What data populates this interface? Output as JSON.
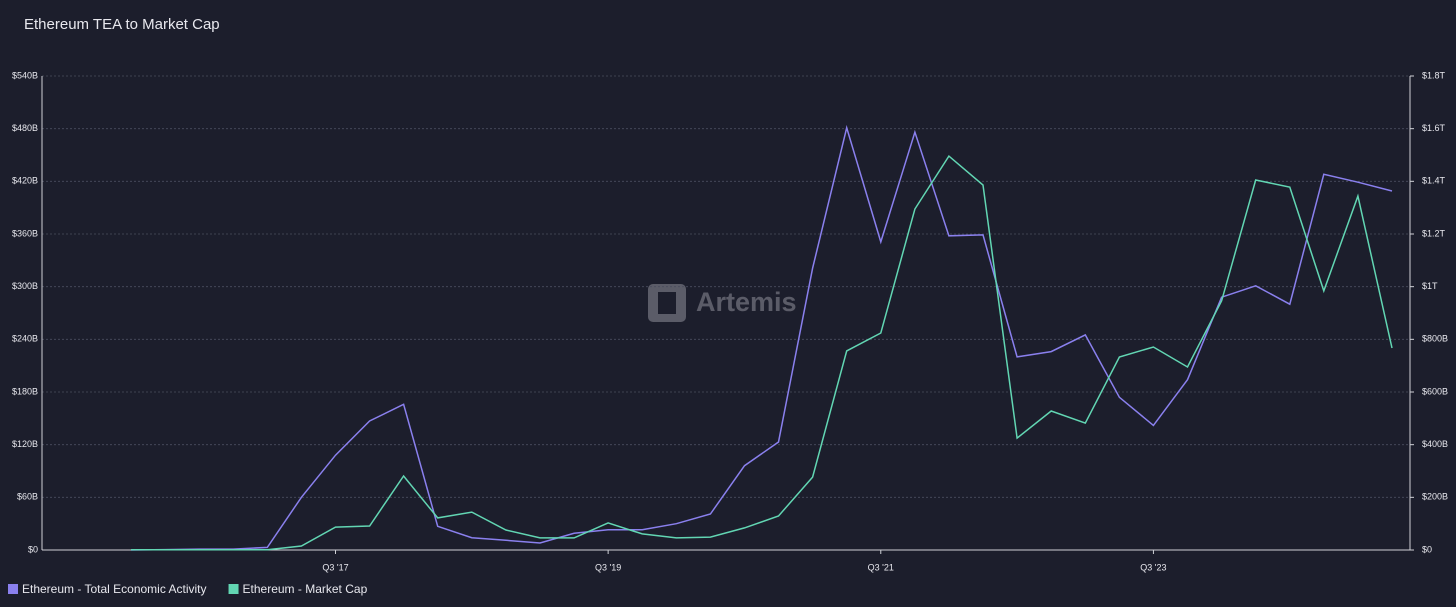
{
  "chart_data": {
    "type": "line",
    "title": "Ethereum TEA to Market Cap",
    "watermark": "Artemis",
    "categories": [
      null,
      null,
      null,
      null,
      null,
      null,
      "Q3 '17",
      null,
      null,
      null,
      null,
      null,
      null,
      null,
      "Q3 '19",
      null,
      null,
      null,
      null,
      null,
      null,
      null,
      "Q3 '21",
      null,
      null,
      null,
      null,
      null,
      null,
      null,
      "Q3 '23",
      null,
      null,
      null,
      null,
      null,
      null,
      null
    ],
    "series": [
      {
        "name": "Ethereum - Total Economic Activity",
        "color": "#8a80ee",
        "axis": "y",
        "values": [
          0,
          0.5,
          1,
          1,
          3,
          60,
          108,
          147,
          166,
          27,
          14,
          11,
          8,
          19,
          23,
          23,
          30,
          41,
          96,
          123,
          321,
          481,
          351,
          476,
          358,
          359,
          220,
          226,
          245,
          174,
          142,
          194,
          288,
          301,
          280,
          428,
          419,
          409
        ]
      },
      {
        "name": "Ethereum - Market Cap",
        "color": "#62d6b3",
        "axis": "y2",
        "values": [
          1,
          1,
          1,
          1,
          1,
          15,
          87,
          91,
          281,
          122,
          144,
          76,
          46,
          46,
          103,
          61,
          46,
          49,
          84,
          129,
          277,
          756,
          824,
          1295,
          1496,
          1386,
          425,
          528,
          482,
          733,
          771,
          695,
          946,
          1405,
          1378,
          984,
          1344,
          767
        ]
      }
    ],
    "ylim": [
      0,
      540
    ],
    "yticks": [
      {
        "value": 0,
        "label": "$0"
      },
      {
        "value": 60,
        "label": "$60B"
      },
      {
        "value": 120,
        "label": "$120B"
      },
      {
        "value": 180,
        "label": "$180B"
      },
      {
        "value": 240,
        "label": "$240B"
      },
      {
        "value": 300,
        "label": "$300B"
      },
      {
        "value": 360,
        "label": "$360B"
      },
      {
        "value": 420,
        "label": "$420B"
      },
      {
        "value": 480,
        "label": "$480B"
      },
      {
        "value": 540,
        "label": "$540B"
      }
    ],
    "y2lim": [
      0,
      1800
    ],
    "y2ticks": [
      {
        "value": 0,
        "label": "$0"
      },
      {
        "value": 200,
        "label": "$200B"
      },
      {
        "value": 400,
        "label": "$400B"
      },
      {
        "value": 600,
        "label": "$600B"
      },
      {
        "value": 800,
        "label": "$800B"
      },
      {
        "value": 1000,
        "label": "$1T"
      },
      {
        "value": 1200,
        "label": "$1.2T"
      },
      {
        "value": 1400,
        "label": "$1.4T"
      },
      {
        "value": 1600,
        "label": "$1.6T"
      },
      {
        "value": 1800,
        "label": "$1.8T"
      }
    ],
    "grid": true,
    "legend": "bottom-left"
  }
}
